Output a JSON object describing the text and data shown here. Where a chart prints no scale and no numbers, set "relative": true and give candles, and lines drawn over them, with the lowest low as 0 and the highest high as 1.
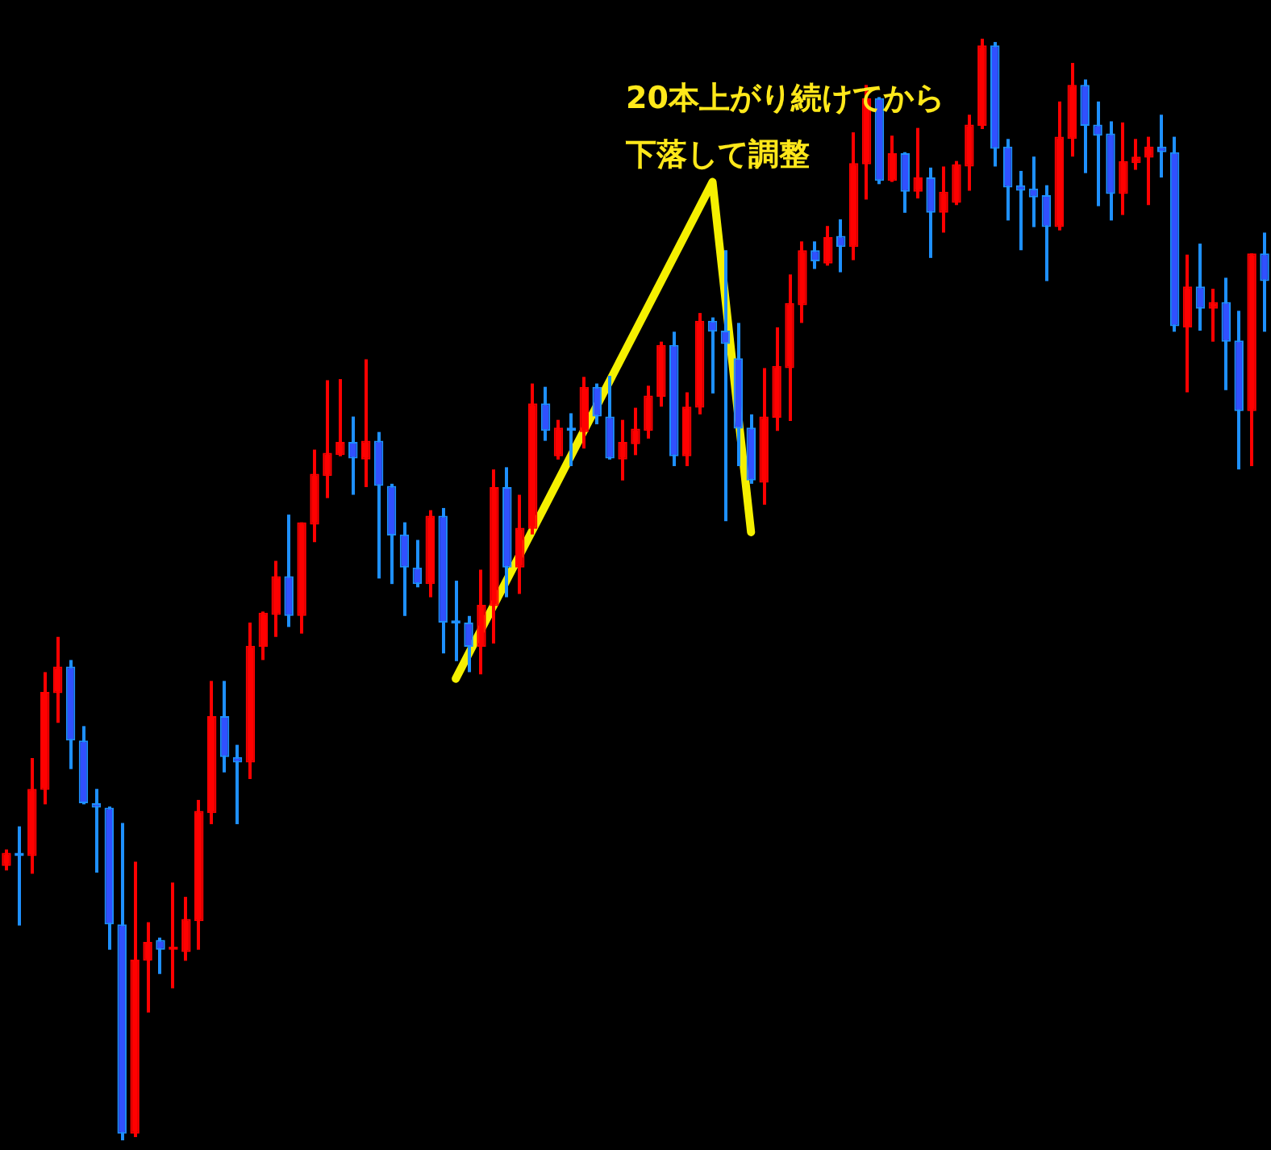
{
  "chart_data": {
    "type": "candlestick",
    "relative": true,
    "annotations": [
      "20本上がり続けてから",
      "下落して調整"
    ],
    "series": [
      {
        "type": "line",
        "color": "#f5f000",
        "values": [
          null,
          null,
          null,
          null,
          null,
          null,
          null,
          null,
          null,
          null,
          null,
          null,
          null,
          null,
          null,
          null,
          null,
          null,
          null,
          null,
          null,
          null,
          null,
          null,
          null,
          null,
          null,
          null,
          null,
          null,
          null,
          null,
          null,
          null,
          null,
          0.419,
          null,
          null,
          null,
          null,
          null,
          null,
          null,
          null,
          null,
          null,
          null,
          null,
          null,
          null,
          null,
          null,
          null,
          null,
          null,
          0.87,
          null,
          null,
          0.552,
          null,
          null,
          null,
          null,
          null,
          null,
          null,
          null,
          null,
          null,
          null,
          null,
          null,
          null,
          null,
          null,
          null,
          null,
          null,
          null,
          null,
          null,
          null,
          null,
          null,
          null,
          null,
          null,
          null,
          null,
          null,
          null,
          null,
          null,
          null,
          null,
          null,
          null,
          null,
          null
        ]
      }
    ],
    "categories": [
      null,
      null,
      null,
      null,
      null,
      null,
      null,
      null,
      null,
      null,
      null,
      null,
      null,
      null,
      null,
      null,
      null,
      null,
      null,
      null,
      null,
      null,
      null,
      null,
      null,
      null,
      null,
      null,
      null,
      null,
      null,
      null,
      null,
      null,
      null,
      null,
      null,
      null,
      null,
      null,
      null,
      null,
      null,
      null,
      null,
      null,
      null,
      null,
      null,
      null,
      null,
      null,
      null,
      null,
      null,
      null,
      null,
      null,
      null,
      null,
      null,
      null,
      null,
      null,
      null,
      null,
      null,
      null,
      null,
      null,
      null,
      null,
      null,
      null,
      null,
      null,
      null,
      null,
      null,
      null,
      null,
      null,
      null,
      null,
      null,
      null,
      null,
      null,
      null,
      null,
      null,
      null,
      null,
      null,
      null,
      null,
      null,
      null,
      null
    ],
    "ohlc": [
      [
        0.249,
        0.264,
        0.245,
        0.261
      ],
      [
        0.259,
        0.285,
        0.195,
        0.258
      ],
      [
        0.258,
        0.347,
        0.242,
        0.319
      ],
      [
        0.318,
        0.425,
        0.305,
        0.407
      ],
      [
        0.406,
        0.457,
        0.379,
        0.43
      ],
      [
        0.43,
        0.436,
        0.337,
        0.363
      ],
      [
        0.363,
        0.376,
        0.305,
        0.306
      ],
      [
        0.306,
        0.319,
        0.243,
        0.302
      ],
      [
        0.302,
        0.303,
        0.173,
        0.196
      ],
      [
        0.196,
        0.288,
        0,
        0.006
      ],
      [
        0.006,
        0.253,
        0.003,
        0.164
      ],
      [
        0.163,
        0.198,
        0.116,
        0.18
      ],
      [
        0.182,
        0.184,
        0.151,
        0.173
      ],
      [
        0.173,
        0.234,
        0.138,
        0.174
      ],
      [
        0.171,
        0.221,
        0.163,
        0.201
      ],
      [
        0.199,
        0.309,
        0.173,
        0.299
      ],
      [
        0.297,
        0.417,
        0.287,
        0.385
      ],
      [
        0.385,
        0.417,
        0.334,
        0.348
      ],
      [
        0.348,
        0.359,
        0.287,
        0.343
      ],
      [
        0.343,
        0.47,
        0.328,
        0.449
      ],
      [
        0.448,
        0.48,
        0.436,
        0.479
      ],
      [
        0.477,
        0.526,
        0.457,
        0.512
      ],
      [
        0.512,
        0.568,
        0.466,
        0.476
      ],
      [
        0.476,
        0.561,
        0.46,
        0.561
      ],
      [
        0.559,
        0.627,
        0.543,
        0.605
      ],
      [
        0.603,
        0.69,
        0.583,
        0.624
      ],
      [
        0.622,
        0.691,
        0.621,
        0.634
      ],
      [
        0.634,
        0.657,
        0.586,
        0.619
      ],
      [
        0.618,
        0.709,
        0.593,
        0.635
      ],
      [
        0.635,
        0.643,
        0.51,
        0.594
      ],
      [
        0.594,
        0.596,
        0.505,
        0.549
      ],
      [
        0.55,
        0.561,
        0.476,
        0.52
      ],
      [
        0.52,
        0.545,
        0.502,
        0.505
      ],
      [
        0.505,
        0.572,
        0.493,
        0.567
      ],
      [
        0.567,
        0.574,
        0.442,
        0.47
      ],
      [
        0.471,
        0.508,
        0.435,
        0.469
      ],
      [
        0.47,
        0.476,
        0.425,
        0.448
      ],
      [
        0.448,
        0.518,
        0.423,
        0.486
      ],
      [
        0.485,
        0.609,
        0.451,
        0.593
      ],
      [
        0.593,
        0.611,
        0.493,
        0.52
      ],
      [
        0.52,
        0.586,
        0.496,
        0.556
      ],
      [
        0.555,
        0.687,
        0.55,
        0.669
      ],
      [
        0.669,
        0.684,
        0.635,
        0.644
      ],
      [
        0.621,
        0.654,
        0.618,
        0.647
      ],
      [
        0.647,
        0.66,
        0.612,
        0.644
      ],
      [
        0.643,
        0.693,
        0.628,
        0.684
      ],
      [
        0.684,
        0.687,
        0.65,
        0.657
      ],
      [
        0.657,
        0.694,
        0.618,
        0.619
      ],
      [
        0.618,
        0.654,
        0.599,
        0.634
      ],
      [
        0.632,
        0.665,
        0.622,
        0.646
      ],
      [
        0.644,
        0.685,
        0.637,
        0.676
      ],
      [
        0.675,
        0.725,
        0.666,
        0.722
      ],
      [
        0.722,
        0.734,
        0.612,
        0.621
      ],
      [
        0.621,
        0.679,
        0.612,
        0.666
      ],
      [
        0.665,
        0.751,
        0.659,
        0.744
      ],
      [
        0.744,
        0.747,
        0.678,
        0.734
      ],
      [
        0.735,
        0.808,
        0.562,
        0.723
      ],
      [
        0.71,
        0.742,
        0.612,
        0.646
      ],
      [
        0.647,
        0.659,
        0.596,
        0.599
      ],
      [
        0.597,
        0.701,
        0.577,
        0.657
      ],
      [
        0.656,
        0.738,
        0.644,
        0.703
      ],
      [
        0.701,
        0.786,
        0.653,
        0.76
      ],
      [
        0.758,
        0.816,
        0.742,
        0.808
      ],
      [
        0.808,
        0.816,
        0.791,
        0.798
      ],
      [
        0.796,
        0.83,
        0.794,
        0.82
      ],
      [
        0.821,
        0.836,
        0.788,
        0.811
      ],
      [
        0.811,
        0.915,
        0.799,
        0.887
      ],
      [
        0.886,
        0.958,
        0.854,
        0.946
      ],
      [
        0.946,
        0.947,
        0.868,
        0.871
      ],
      [
        0.871,
        0.912,
        0.87,
        0.896
      ],
      [
        0.896,
        0.897,
        0.842,
        0.861
      ],
      [
        0.861,
        0.919,
        0.855,
        0.874
      ],
      [
        0.874,
        0.883,
        0.801,
        0.842
      ],
      [
        0.842,
        0.884,
        0.824,
        0.861
      ],
      [
        0.851,
        0.889,
        0.849,
        0.886
      ],
      [
        0.884,
        0.931,
        0.862,
        0.922
      ],
      [
        0.921,
        1,
        0.918,
        0.994
      ],
      [
        0.994,
        0.997,
        0.884,
        0.9
      ],
      [
        0.902,
        0.909,
        0.835,
        0.865
      ],
      [
        0.867,
        0.88,
        0.808,
        0.862
      ],
      [
        0.864,
        0.893,
        0.829,
        0.856
      ],
      [
        0.858,
        0.867,
        0.78,
        0.829
      ],
      [
        0.829,
        0.943,
        0.826,
        0.911
      ],
      [
        0.909,
        0.978,
        0.893,
        0.958
      ],
      [
        0.958,
        0.963,
        0.878,
        0.921
      ],
      [
        0.922,
        0.943,
        0.848,
        0.912
      ],
      [
        0.914,
        0.925,
        0.835,
        0.859
      ],
      [
        0.859,
        0.924,
        0.84,
        0.889
      ],
      [
        0.887,
        0.909,
        0.881,
        0.893
      ],
      [
        0.892,
        0.911,
        0.849,
        0.902
      ],
      [
        0.902,
        0.931,
        0.874,
        0.897
      ],
      [
        0.897,
        0.911,
        0.734,
        0.739
      ],
      [
        0.738,
        0.804,
        0.679,
        0.775
      ],
      [
        0.775,
        0.814,
        0.735,
        0.755
      ],
      [
        0.755,
        0.773,
        0.725,
        0.761
      ],
      [
        0.761,
        0.783,
        0.681,
        0.725
      ],
      [
        0.726,
        0.753,
        0.609,
        0.662
      ],
      [
        0.662,
        0.805,
        0.612,
        0.805
      ],
      [
        0.805,
        0.824,
        0.734,
        0.78
      ]
    ]
  }
}
